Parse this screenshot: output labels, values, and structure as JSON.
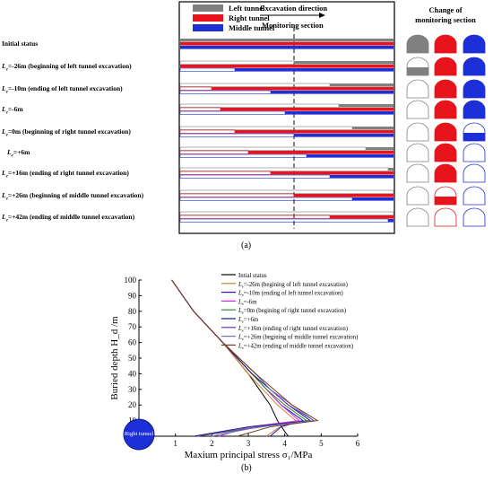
{
  "panel_a": {
    "legend": {
      "left": "Left tunnel",
      "right": "Right tunnel",
      "middle": "Middle tunnel"
    },
    "excavation_direction": "Excavation direction",
    "monitoring_section": "Monitoring section",
    "change_header_1": "Change of",
    "change_header_2": "monitoring section",
    "colors": {
      "left": "#808080",
      "right": "#e8141b",
      "middle": "#1d2fd6"
    },
    "rows": [
      {
        "label_pre": "",
        "label": "Initial status"
      },
      {
        "label_pre": "L",
        "label": "=-26m  (beginning of left tunnel excavation)"
      },
      {
        "label_pre": "L",
        "label": "=-10m  (ending of left tunnel excavation)"
      },
      {
        "label_pre": "L",
        "label": "=-6m"
      },
      {
        "label_pre": "L",
        "label": "=0m  (beginning of right tunnel excavation)"
      },
      {
        "label_pre": "L",
        "label": "=+6m"
      },
      {
        "label_pre": "L",
        "label": "=+16m  (ending of right tunnel excavation)"
      },
      {
        "label_pre": "L",
        "label": "=+26m  (beginning of middle tunnel excavation)"
      },
      {
        "label_pre": "L",
        "label": "=+42m  (ending of middle tunnel excavation)"
      }
    ],
    "caption": "(a)"
  },
  "chart_data": {
    "type": "line",
    "xlabel": "Maxium principal stress σ₁/MPa",
    "ylabel": "Buried depth H_d /m",
    "xlim": [
      0,
      6
    ],
    "ylim": [
      0,
      100
    ],
    "xticks": [
      0,
      1,
      2,
      3,
      4,
      5,
      6
    ],
    "yticks": [
      0,
      10,
      20,
      30,
      40,
      50,
      60,
      70,
      80,
      90,
      100
    ],
    "tunnel_label": "Right tunnel",
    "series": [
      {
        "name": "Intial status",
        "color": "#000000",
        "x": [
          0.9,
          1.5,
          2.3,
          3.0,
          3.3,
          3.6,
          3.8,
          4.0,
          4.1
        ],
        "y": [
          100,
          80,
          60,
          40,
          30,
          20,
          10,
          3,
          0
        ]
      },
      {
        "name": "=-26m (begining of left tunnel excavation)",
        "color": "#e07a2a",
        "x": [
          0.9,
          1.5,
          2.3,
          3.0,
          3.4,
          3.8,
          4.3,
          3.8,
          3.5
        ],
        "y": [
          100,
          80,
          60,
          40,
          30,
          20,
          10,
          5,
          0
        ]
      },
      {
        "name": "=-10m (ending of left tunnel excavation)",
        "color": "#1a1acc",
        "x": [
          0.9,
          1.5,
          2.3,
          3.1,
          3.5,
          3.9,
          4.5,
          3.9,
          3.6
        ],
        "y": [
          100,
          80,
          60,
          40,
          30,
          20,
          10,
          6,
          0
        ]
      },
      {
        "name": "=-6m",
        "color": "#e020e0",
        "x": [
          0.9,
          1.5,
          2.3,
          3.1,
          3.5,
          3.9,
          4.4,
          3.0,
          2.2
        ],
        "y": [
          100,
          80,
          60,
          40,
          30,
          20,
          10,
          6,
          0
        ]
      },
      {
        "name": "=0m (begining of right tunnel excavation)",
        "color": "#2a8c2a",
        "x": [
          0.9,
          1.5,
          2.3,
          3.1,
          3.5,
          4.0,
          4.6,
          3.4,
          1.6
        ],
        "y": [
          100,
          80,
          60,
          40,
          30,
          20,
          10,
          6,
          0
        ]
      },
      {
        "name": "=+6m",
        "color": "#102070",
        "x": [
          0.9,
          1.5,
          2.3,
          3.1,
          3.6,
          4.1,
          4.7,
          3.0,
          1.5
        ],
        "y": [
          100,
          80,
          60,
          40,
          30,
          20,
          10,
          6,
          0
        ]
      },
      {
        "name": "=+16m (ending of right tunnel excavation)",
        "color": "#7a30b0",
        "x": [
          0.9,
          1.5,
          2.3,
          3.2,
          3.6,
          4.1,
          4.8,
          3.2,
          1.6
        ],
        "y": [
          100,
          80,
          60,
          40,
          30,
          20,
          10,
          6,
          0
        ]
      },
      {
        "name": "=+26m (begining of middle tunnel excavation)",
        "color": "#7070d0",
        "x": [
          0.9,
          1.5,
          2.3,
          3.2,
          3.6,
          4.2,
          4.8,
          3.3,
          2.0
        ],
        "y": [
          100,
          80,
          60,
          40,
          30,
          20,
          10,
          6,
          0
        ]
      },
      {
        "name": "=+42m (ending of middle tunnel excavation)",
        "color": "#7a3a1a",
        "x": [
          0.9,
          1.5,
          2.3,
          3.2,
          3.7,
          4.2,
          4.9,
          3.6,
          2.7
        ],
        "y": [
          100,
          80,
          60,
          40,
          30,
          20,
          10,
          6,
          0
        ]
      }
    ],
    "caption": "(b)"
  }
}
